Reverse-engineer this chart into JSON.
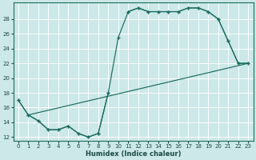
{
  "xlabel": "Humidex (Indice chaleur)",
  "background_color": "#cce8e8",
  "grid_color": "#b8d8d8",
  "line_color": "#1a6b60",
  "xlim": [
    -0.5,
    23.5
  ],
  "ylim": [
    11.5,
    30.2
  ],
  "xticks": [
    0,
    1,
    2,
    3,
    4,
    5,
    6,
    7,
    8,
    9,
    10,
    11,
    12,
    13,
    14,
    15,
    16,
    17,
    18,
    19,
    20,
    21,
    22,
    23
  ],
  "yticks": [
    12,
    14,
    16,
    18,
    20,
    22,
    24,
    26,
    28
  ],
  "curve1_x": [
    0,
    1,
    2,
    3,
    4,
    5,
    6,
    7,
    8,
    9,
    10,
    11,
    12,
    13,
    14,
    15,
    16,
    17,
    18,
    19,
    20,
    21,
    22,
    23
  ],
  "curve1_y": [
    17,
    15,
    14.2,
    13,
    13,
    13.5,
    12.5,
    12,
    12.5,
    18,
    25.5,
    29,
    29.5,
    29,
    29,
    29,
    29,
    29.5,
    29.5,
    29,
    28,
    25,
    22,
    22
  ],
  "curve2_x": [
    0,
    1,
    2,
    3,
    4,
    5,
    6,
    7,
    8,
    9,
    10,
    11,
    12,
    13,
    14,
    15,
    16,
    17,
    18,
    19,
    20,
    21,
    22,
    23
  ],
  "curve2_y": [
    17,
    15,
    14.2,
    13,
    13,
    13.5,
    12.5,
    12,
    12.5,
    18,
    null,
    null,
    null,
    null,
    null,
    null,
    null,
    null,
    null,
    null,
    null,
    null,
    null,
    null
  ],
  "curve3_x": [
    1,
    23
  ],
  "curve3_y": [
    15,
    22
  ],
  "curve4_x": [
    11,
    12,
    13,
    14,
    15,
    16,
    17,
    18,
    19,
    20,
    21,
    22,
    23
  ],
  "curve4_y": [
    29,
    29.5,
    29,
    29,
    29,
    29,
    29.5,
    29.5,
    29,
    28,
    25,
    22,
    22
  ]
}
